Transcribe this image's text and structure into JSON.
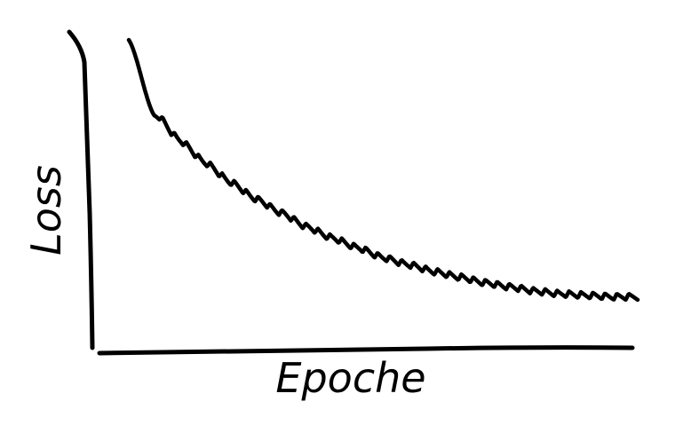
{
  "chart_data": {
    "type": "line",
    "title": "",
    "xlabel": "Epoche",
    "ylabel": "Loss",
    "grid": false,
    "legend": "none",
    "line_color": "#000000",
    "ylim": [
      0,
      1
    ],
    "series": [
      {
        "x": [
          0.0,
          0.05,
          0.1,
          0.15,
          0.2,
          0.25,
          0.3,
          0.35,
          0.4,
          0.45,
          0.5,
          0.55,
          0.6,
          0.65,
          0.7,
          0.75,
          0.8,
          0.85,
          0.9,
          0.95,
          1.0
        ],
        "values": [
          1.0,
          0.73,
          0.63,
          0.55,
          0.48,
          0.42,
          0.37,
          0.32,
          0.28,
          0.245,
          0.21,
          0.185,
          0.16,
          0.14,
          0.12,
          0.105,
          0.09,
          0.08,
          0.075,
          0.07,
          0.07
        ]
      }
    ]
  }
}
